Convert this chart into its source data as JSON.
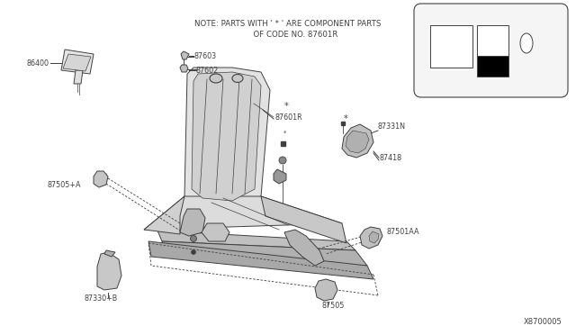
{
  "background_color": "#ffffff",
  "fig_width": 6.4,
  "fig_height": 3.72,
  "dpi": 100,
  "note_line1": "NOTE: PARTS WITH ' * ' ARE COMPONENT PARTS",
  "note_line2": "      OF CODE NO. 87601R",
  "diagram_id": "X8700005",
  "lc": "#404040",
  "lc2": "#222222",
  "seat_fill": "#e8e8e8",
  "seat_fill2": "#d8d8d8",
  "seat_fill3": "#c8c8c8",
  "label_fontsize": 5.8,
  "note_fontsize": 6.2
}
